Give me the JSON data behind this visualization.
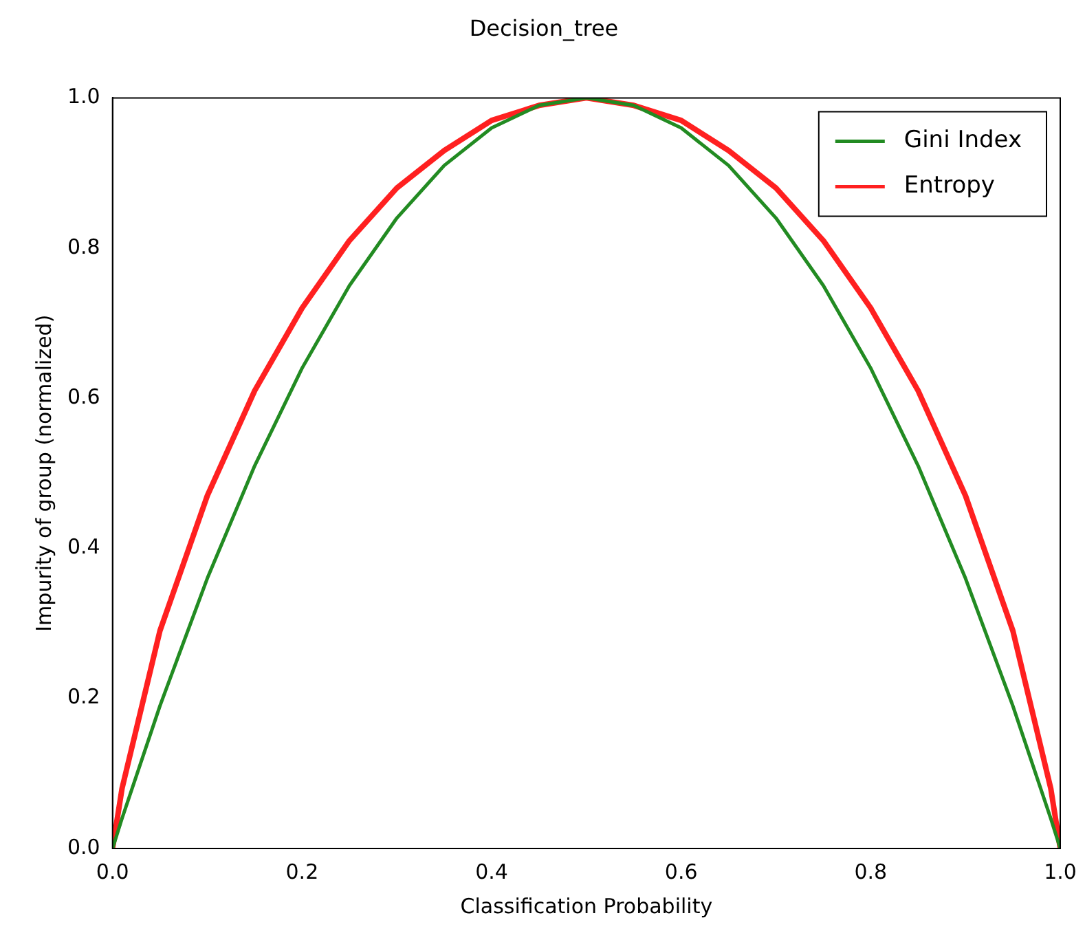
{
  "chart_data": {
    "type": "line",
    "title": "Decision_tree",
    "xlabel": "Classification Probability",
    "ylabel": "Impurity of group (normalized)",
    "x": [
      0,
      0.01,
      0.05,
      0.1,
      0.15,
      0.2,
      0.25,
      0.3,
      0.35,
      0.4,
      0.45,
      0.5,
      0.55,
      0.6,
      0.65,
      0.7,
      0.75,
      0.8,
      0.85,
      0.9,
      0.95,
      0.99,
      1
    ],
    "series": [
      {
        "name": "Gini Index",
        "color": "#228b22",
        "values": [
          0,
          0.04,
          0.19,
          0.36,
          0.51,
          0.64,
          0.75,
          0.84,
          0.91,
          0.96,
          0.99,
          1,
          0.99,
          0.96,
          0.91,
          0.84,
          0.75,
          0.64,
          0.51,
          0.36,
          0.19,
          0.04,
          0
        ]
      },
      {
        "name": "Entropy",
        "color": "#ff2020",
        "values": [
          0,
          0.08,
          0.29,
          0.47,
          0.61,
          0.72,
          0.81,
          0.88,
          0.93,
          0.97,
          0.99,
          1,
          0.99,
          0.97,
          0.93,
          0.88,
          0.81,
          0.72,
          0.61,
          0.47,
          0.29,
          0.08,
          0
        ]
      }
    ],
    "xlim": [
      0,
      1
    ],
    "ylim": [
      0,
      1
    ],
    "xticks": [
      {
        "value": 0,
        "label": "0.0"
      },
      0.2,
      0.4,
      0.6,
      0.8,
      {
        "value": 1,
        "label": "1.0"
      }
    ],
    "yticks": [
      {
        "value": 0,
        "label": "0.0"
      },
      0.2,
      0.4,
      0.6,
      0.8,
      {
        "value": 1,
        "label": "1.0"
      }
    ],
    "grid": false,
    "legend": "top right"
  }
}
